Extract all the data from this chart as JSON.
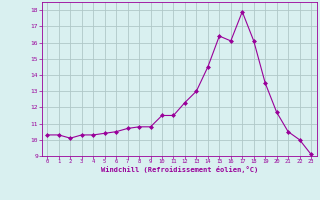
{
  "x": [
    0,
    1,
    2,
    3,
    4,
    5,
    6,
    7,
    8,
    9,
    10,
    11,
    12,
    13,
    14,
    15,
    16,
    17,
    18,
    19,
    20,
    21,
    22,
    23
  ],
  "y": [
    10.3,
    10.3,
    10.1,
    10.3,
    10.3,
    10.4,
    10.5,
    10.7,
    10.8,
    10.8,
    11.5,
    11.5,
    12.3,
    13.0,
    14.5,
    16.4,
    16.1,
    17.9,
    16.1,
    13.5,
    11.7,
    10.5,
    10.0,
    9.1
  ],
  "line_color": "#990099",
  "marker_color": "#990099",
  "bg_color": "#d9f0f0",
  "grid_color": "#b0c8c8",
  "text_color": "#990099",
  "xlabel": "Windchill (Refroidissement éolien,°C)",
  "xlim": [
    -0.5,
    23.5
  ],
  "ylim": [
    9,
    18.5
  ],
  "yticks": [
    9,
    10,
    11,
    12,
    13,
    14,
    15,
    16,
    17,
    18
  ],
  "xticks": [
    0,
    1,
    2,
    3,
    4,
    5,
    6,
    7,
    8,
    9,
    10,
    11,
    12,
    13,
    14,
    15,
    16,
    17,
    18,
    19,
    20,
    21,
    22,
    23
  ]
}
